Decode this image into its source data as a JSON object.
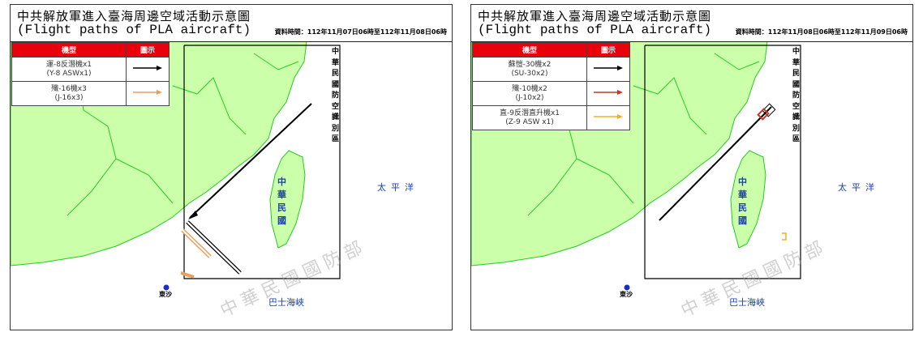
{
  "panels": [
    {
      "title_zh": "中共解放軍進入臺海周邊空域活動示意圖",
      "title_en": "(Flight paths of PLA aircraft)",
      "date": "資料時間：112年11月07日06時至112年11月08日06時",
      "legend_headers": [
        "機型",
        "圖示"
      ],
      "legend": [
        {
          "zh": "運-8反潛機x1",
          "en": "(Y-8 ASWx1)",
          "color": "#000000"
        },
        {
          "zh": "殲-16機x3",
          "en": "(J-16x3)",
          "color": "#e8a060"
        }
      ],
      "adiz": "中華民國防空識別區",
      "taiwan": "中華民國",
      "pacific": "太平洋",
      "bashi": "巴士海峽",
      "dongsha": "東沙",
      "watermark": "中華民國國防部"
    },
    {
      "title_zh": "中共解放軍進入臺海周邊空域活動示意圖",
      "title_en": "(Flight paths of PLA aircraft)",
      "date": "資料時間：112年11月08日06時至112年11月09日06時",
      "legend_headers": [
        "機型",
        "圖示"
      ],
      "legend": [
        {
          "zh": "蘇愷-30機x2",
          "en": "(SU-30x2)",
          "color": "#000000"
        },
        {
          "zh": "殲-10機x2",
          "en": "(J-10x2)",
          "color": "#c0392b"
        },
        {
          "zh": "直-9反潛直升機x1",
          "en": "(Z-9 ASW x1)",
          "color": "#f0b020"
        }
      ],
      "adiz": "中華民國防空識別區",
      "taiwan": "中華民國",
      "pacific": "太平洋",
      "bashi": "巴士海峽",
      "dongsha": "東沙",
      "watermark": "中華民國國防部"
    }
  ],
  "colors": {
    "land": "#ccffaa",
    "border": "#22cc22",
    "adiz": "#000000",
    "label_blue": "#1a3fb0"
  }
}
